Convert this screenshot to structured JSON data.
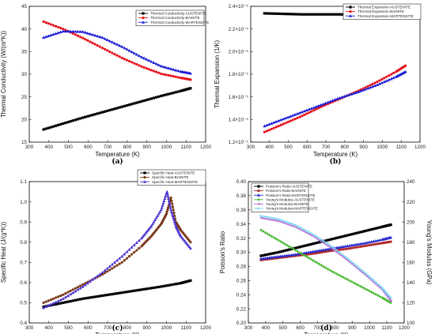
{
  "chart_data": [
    {
      "type": "line",
      "panel_label": "(a)",
      "xlabel": "Temperature (K)",
      "ylabel": "Thermal Conductivity (W/(m*K))",
      "xlim": [
        300,
        1200
      ],
      "ylim": [
        15,
        45
      ],
      "xticks": [
        "300",
        "400",
        "500",
        "600",
        "700",
        "800",
        "900",
        "1000",
        "1100",
        "1200"
      ],
      "yticks": [
        "15",
        "20",
        "25",
        "30",
        "35",
        "40",
        "45"
      ],
      "legend_position": "top-right",
      "series": [
        {
          "name": "Thermal Conductivity-AUSTENITE",
          "color": "#000000",
          "marker": "square",
          "x": [
            373,
            473,
            573,
            673,
            773,
            873,
            973,
            1073,
            1123
          ],
          "y": [
            17.8,
            19.1,
            20.4,
            21.6,
            22.8,
            24.0,
            25.2,
            26.3,
            26.9
          ]
        },
        {
          "name": "Thermal Conductivity-BAINITE",
          "color": "#e8141c",
          "marker": "circle",
          "x": [
            373,
            473,
            573,
            673,
            773,
            873,
            973,
            1073,
            1123
          ],
          "y": [
            41.6,
            40.0,
            38.0,
            35.8,
            33.6,
            31.7,
            30.1,
            29.2,
            28.8
          ]
        },
        {
          "name": "Thermal Conductivity-MARTENSITE",
          "color": "#1c1cd8",
          "marker": "triangle",
          "x": [
            373,
            473,
            573,
            673,
            773,
            873,
            973,
            1073,
            1123
          ],
          "y": [
            38.1,
            39.5,
            39.4,
            38.1,
            36.1,
            33.8,
            31.8,
            30.6,
            30.2
          ]
        }
      ]
    },
    {
      "type": "line",
      "panel_label": "(b)",
      "xlabel": "Temperature (K)",
      "ylabel": "Thermal Expansion (1/K)",
      "xlim": [
        300,
        1200
      ],
      "ylim": [
        1.1e-05,
        2.45e-05
      ],
      "xticks": [
        "300",
        "400",
        "500",
        "600",
        "700",
        "800",
        "900",
        "1000",
        "1100",
        "1200"
      ],
      "yticks": [
        "1.2×10⁻⁵",
        "1.4×10⁻⁵",
        "1.6×10⁻⁵",
        "1.8×10⁻⁵",
        "2.0×10⁻⁵",
        "2.2×10⁻⁵",
        "2.4×10⁻⁵"
      ],
      "legend_position": "top-right",
      "series": [
        {
          "name": "Thermal Expansion-AUSTENITE",
          "color": "#000000",
          "marker": "square",
          "x": [
            373,
            473,
            573,
            673,
            773,
            873,
            973,
            1073,
            1123
          ],
          "y": [
            2.38e-05,
            2.375e-05,
            2.37e-05,
            2.37e-05,
            2.37e-05,
            2.365e-05,
            2.365e-05,
            2.37e-05,
            2.37e-05
          ]
        },
        {
          "name": "Thermal Expansion-BAINITE",
          "color": "#e8141c",
          "marker": "circle",
          "x": [
            373,
            473,
            573,
            673,
            773,
            873,
            973,
            1073,
            1123
          ],
          "y": [
            1.2e-05,
            1.28e-05,
            1.36e-05,
            1.45e-05,
            1.53e-05,
            1.61e-05,
            1.7e-05,
            1.8e-05,
            1.86e-05
          ]
        },
        {
          "name": "Thermal Expansion-MARTENSITE",
          "color": "#1c1cd8",
          "marker": "triangle",
          "x": [
            373,
            473,
            573,
            673,
            773,
            873,
            973,
            1073,
            1123
          ],
          "y": [
            1.26e-05,
            1.33e-05,
            1.4e-05,
            1.47e-05,
            1.54e-05,
            1.6e-05,
            1.67e-05,
            1.75e-05,
            1.8e-05
          ]
        }
      ]
    },
    {
      "type": "line",
      "panel_label": "(c)",
      "xlabel": "Temperature (K)",
      "ylabel": "Specific Heat (J/(g*K))",
      "xlim": [
        300,
        1200
      ],
      "ylim": [
        0.4,
        1.1
      ],
      "xticks": [
        "300",
        "400",
        "500",
        "600",
        "700",
        "800",
        "900",
        "1000",
        "1100",
        "1200"
      ],
      "yticks": [
        "0.4",
        "0.5",
        "0.6",
        "0.7",
        "0.8",
        "0.9",
        "1.0",
        "1.1"
      ],
      "legend_position": "top-right",
      "series": [
        {
          "name": "Specific Heat-AUSTENITE",
          "color": "#000000",
          "marker": "square",
          "x": [
            373,
            473,
            573,
            673,
            773,
            873,
            973,
            1073,
            1123
          ],
          "y": [
            0.48,
            0.5,
            0.52,
            0.535,
            0.55,
            0.565,
            0.58,
            0.597,
            0.61
          ]
        },
        {
          "name": "Specific Heat-BAINITE",
          "color": "#7a3a1a",
          "marker": "circle",
          "x": [
            373,
            473,
            573,
            673,
            773,
            873,
            923,
            973,
            1000,
            1023,
            1048,
            1073,
            1123
          ],
          "y": [
            0.5,
            0.54,
            0.59,
            0.64,
            0.7,
            0.78,
            0.83,
            0.89,
            0.94,
            1.02,
            0.9,
            0.86,
            0.8
          ]
        },
        {
          "name": "Specific Heat-MARTENSITE",
          "color": "#4a2fd0",
          "marker": "triangle",
          "x": [
            373,
            473,
            573,
            673,
            773,
            873,
            923,
            973,
            1003,
            1023,
            1048,
            1073,
            1123
          ],
          "y": [
            0.475,
            0.52,
            0.58,
            0.65,
            0.73,
            0.82,
            0.88,
            0.96,
            1.05,
            0.96,
            0.88,
            0.83,
            0.77
          ]
        }
      ]
    },
    {
      "type": "line",
      "panel_label": "(d)",
      "xlabel": "Temperature (K)",
      "ylabel": "Poisson's Ratio",
      "y2label": "Young's Modulus (GPa)",
      "xlim": [
        300,
        1200
      ],
      "ylim": [
        0.2,
        0.4
      ],
      "y2lim": [
        100,
        240
      ],
      "xticks": [
        "300",
        "400",
        "500",
        "600",
        "700",
        "800",
        "900",
        "1000",
        "1100",
        "1200"
      ],
      "yticks": [
        "0.20",
        "0.22",
        "0.24",
        "0.26",
        "0.28",
        "0.30",
        "0.32",
        "0.34",
        "0.36",
        "0.38",
        "0.40"
      ],
      "y2ticks": [
        "100",
        "120",
        "140",
        "160",
        "180",
        "200",
        "220",
        "240"
      ],
      "legend_position": "top-left",
      "series": [
        {
          "name": "Poisson's Ratio-AUSTENITE",
          "color": "#000000",
          "marker": "square",
          "axis": "left",
          "x": [
            373,
            473,
            573,
            673,
            773,
            873,
            973,
            1073,
            1123
          ],
          "y": [
            0.295,
            0.3,
            0.306,
            0.312,
            0.318,
            0.324,
            0.33,
            0.336,
            0.339
          ]
        },
        {
          "name": "Poisson's Ratio-BAINITE",
          "color": "#b02a2a",
          "marker": "circle",
          "axis": "left",
          "x": [
            373,
            473,
            573,
            673,
            773,
            873,
            973,
            1073,
            1123
          ],
          "y": [
            0.289,
            0.292,
            0.295,
            0.298,
            0.302,
            0.305,
            0.309,
            0.313,
            0.315
          ]
        },
        {
          "name": "Poisson's Ratio-MARTENSITE",
          "color": "#2a2ad0",
          "marker": "triangle",
          "axis": "left",
          "x": [
            373,
            473,
            573,
            673,
            773,
            873,
            973,
            1073,
            1123
          ],
          "y": [
            0.291,
            0.294,
            0.297,
            0.301,
            0.305,
            0.309,
            0.313,
            0.318,
            0.321
          ]
        },
        {
          "name": "Young's Modulus-AUSTENITE",
          "color": "#48b830",
          "marker": "diamond",
          "axis": "right",
          "x": [
            373,
            473,
            573,
            673,
            773,
            873,
            973,
            1073,
            1123
          ],
          "y": [
            192,
            182,
            172,
            162,
            152,
            143,
            134,
            125,
            120
          ]
        },
        {
          "name": "Young's Modulus-BAINITE",
          "color": "#b46ad8",
          "marker": "triangle-left",
          "axis": "right",
          "x": [
            373,
            473,
            573,
            673,
            773,
            873,
            973,
            1073,
            1123
          ],
          "y": [
            204,
            201,
            195,
            186,
            175,
            162,
            148,
            133,
            122
          ]
        },
        {
          "name": "Young's Modulus-MARTENSITE",
          "color": "#7ad8f0",
          "marker": "triangle-right",
          "axis": "right",
          "x": [
            373,
            473,
            573,
            673,
            773,
            873,
            973,
            1073,
            1123
          ],
          "y": [
            206,
            203,
            197,
            188,
            177,
            164,
            150,
            135,
            125
          ]
        }
      ]
    }
  ]
}
